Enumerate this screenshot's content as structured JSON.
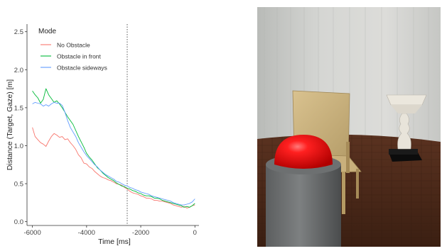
{
  "chart_data": {
    "type": "line",
    "xlabel": "Time [ms]",
    "ylabel": "Distance (Target, Gaze) [m]",
    "xlim": [
      -6200,
      150
    ],
    "ylim": [
      -0.05,
      2.6
    ],
    "x_ticks": [
      -6000,
      -4000,
      -2000,
      0
    ],
    "x_tick_labels": [
      "-6000",
      "-4000",
      "-2000",
      "0"
    ],
    "y_ticks": [
      0.0,
      0.5,
      1.0,
      1.5,
      2.0,
      2.5
    ],
    "y_tick_labels": [
      "0.0",
      "0.5",
      "1.0",
      "1.5",
      "2.0",
      "2.5"
    ],
    "vline_x": -2500,
    "grid": false,
    "legend": {
      "title": "Mode",
      "placement": "top-left"
    },
    "series": [
      {
        "name": "No Obstacle",
        "color": "#f8766d",
        "x": [
          -6000,
          -5900,
          -5800,
          -5700,
          -5600,
          -5500,
          -5400,
          -5300,
          -5200,
          -5100,
          -5000,
          -4900,
          -4800,
          -4700,
          -4600,
          -4500,
          -4400,
          -4300,
          -4200,
          -4100,
          -4000,
          -3900,
          -3800,
          -3700,
          -3600,
          -3500,
          -3400,
          -3300,
          -3200,
          -3100,
          -3000,
          -2900,
          -2800,
          -2700,
          -2600,
          -2500,
          -2400,
          -2300,
          -2200,
          -2100,
          -2000,
          -1900,
          -1800,
          -1700,
          -1600,
          -1500,
          -1400,
          -1300,
          -1200,
          -1100,
          -1000,
          -900,
          -800,
          -700,
          -600,
          -500,
          -400,
          -300,
          -200,
          -100,
          0
        ],
        "y": [
          1.24,
          1.12,
          1.08,
          1.04,
          1.02,
          0.99,
          1.06,
          1.12,
          1.16,
          1.14,
          1.11,
          1.12,
          1.08,
          1.09,
          1.04,
          1.0,
          0.95,
          0.88,
          0.84,
          0.77,
          0.76,
          0.72,
          0.7,
          0.66,
          0.63,
          0.6,
          0.58,
          0.57,
          0.55,
          0.54,
          0.52,
          0.5,
          0.49,
          0.48,
          0.45,
          0.43,
          0.4,
          0.38,
          0.37,
          0.36,
          0.34,
          0.33,
          0.31,
          0.31,
          0.3,
          0.28,
          0.28,
          0.27,
          0.27,
          0.26,
          0.25,
          0.24,
          0.22,
          0.21,
          0.2,
          0.19,
          0.2,
          0.18,
          0.19,
          0.21,
          0.22
        ]
      },
      {
        "name": "Obstacle in front",
        "color": "#00ba38",
        "x": [
          -6000,
          -5900,
          -5800,
          -5700,
          -5600,
          -5500,
          -5400,
          -5300,
          -5200,
          -5100,
          -5000,
          -4900,
          -4800,
          -4700,
          -4600,
          -4500,
          -4400,
          -4300,
          -4200,
          -4100,
          -4000,
          -3900,
          -3800,
          -3700,
          -3600,
          -3500,
          -3400,
          -3300,
          -3200,
          -3100,
          -3000,
          -2900,
          -2800,
          -2700,
          -2600,
          -2500,
          -2400,
          -2300,
          -2200,
          -2100,
          -2000,
          -1900,
          -1800,
          -1700,
          -1600,
          -1500,
          -1400,
          -1300,
          -1200,
          -1100,
          -1000,
          -900,
          -800,
          -700,
          -600,
          -500,
          -400,
          -300,
          -200,
          -100,
          0
        ],
        "y": [
          1.72,
          1.67,
          1.63,
          1.56,
          1.61,
          1.75,
          1.67,
          1.62,
          1.57,
          1.59,
          1.55,
          1.5,
          1.44,
          1.38,
          1.33,
          1.28,
          1.2,
          1.12,
          1.05,
          0.98,
          0.9,
          0.85,
          0.81,
          0.76,
          0.71,
          0.68,
          0.64,
          0.61,
          0.58,
          0.56,
          0.54,
          0.51,
          0.49,
          0.47,
          0.46,
          0.44,
          0.43,
          0.41,
          0.4,
          0.38,
          0.37,
          0.35,
          0.34,
          0.34,
          0.33,
          0.31,
          0.31,
          0.3,
          0.28,
          0.27,
          0.26,
          0.25,
          0.24,
          0.23,
          0.22,
          0.21,
          0.19,
          0.2,
          0.19,
          0.21,
          0.24
        ]
      },
      {
        "name": "Obstacle sideways",
        "color": "#619cff",
        "x": [
          -6000,
          -5900,
          -5800,
          -5700,
          -5600,
          -5500,
          -5400,
          -5300,
          -5200,
          -5100,
          -5000,
          -4900,
          -4800,
          -4700,
          -4600,
          -4500,
          -4400,
          -4300,
          -4200,
          -4100,
          -4000,
          -3900,
          -3800,
          -3700,
          -3600,
          -3500,
          -3400,
          -3300,
          -3200,
          -3100,
          -3000,
          -2900,
          -2800,
          -2700,
          -2600,
          -2500,
          -2400,
          -2300,
          -2200,
          -2100,
          -2000,
          -1900,
          -1800,
          -1700,
          -1600,
          -1500,
          -1400,
          -1300,
          -1200,
          -1100,
          -1000,
          -900,
          -800,
          -700,
          -600,
          -500,
          -400,
          -300,
          -200,
          -100,
          0
        ],
        "y": [
          1.55,
          1.57,
          1.56,
          1.55,
          1.52,
          1.54,
          1.52,
          1.55,
          1.57,
          1.56,
          1.56,
          1.53,
          1.44,
          1.33,
          1.24,
          1.18,
          1.12,
          1.04,
          0.98,
          0.92,
          0.87,
          0.83,
          0.79,
          0.75,
          0.72,
          0.68,
          0.65,
          0.62,
          0.6,
          0.58,
          0.56,
          0.53,
          0.52,
          0.5,
          0.48,
          0.47,
          0.45,
          0.44,
          0.42,
          0.41,
          0.39,
          0.38,
          0.37,
          0.36,
          0.34,
          0.33,
          0.32,
          0.31,
          0.3,
          0.29,
          0.28,
          0.27,
          0.25,
          0.24,
          0.23,
          0.22,
          0.22,
          0.23,
          0.24,
          0.26,
          0.3
        ]
      }
    ]
  }
}
